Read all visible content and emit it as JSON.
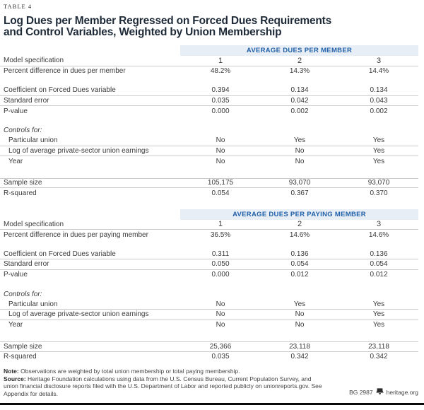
{
  "table_label": "TABLE 4",
  "title_lines": [
    "Log Dues per Member Regressed on Forced Dues Requirements",
    "and Control Variables, Weighted by Union Membership"
  ],
  "colors": {
    "band_background": "#e8eef5",
    "band_text_blue": "#2060a9",
    "row_divider": "#cbcbcb",
    "bottom_bar": "#0a0a0a"
  },
  "sections": [
    {
      "band": "AVERAGE DUES PER MEMBER",
      "rows": [
        {
          "label": "Model specification",
          "values": [
            "1",
            "2",
            "3"
          ],
          "spec": true,
          "line_below": true
        },
        {
          "label": "Percent difference in dues per member",
          "values": [
            "48.2%",
            "14.3%",
            "14.4%"
          ]
        },
        {
          "spacer": true
        },
        {
          "label": "Coefficient on Forced Dues variable",
          "values": [
            "0.394",
            "0.134",
            "0.134"
          ],
          "line_below": true
        },
        {
          "label": "Standard error",
          "values": [
            "0.035",
            "0.042",
            "0.043"
          ],
          "line_below": true
        },
        {
          "label": "P-value",
          "values": [
            "0.000",
            "0.002",
            "0.002"
          ]
        },
        {
          "spacer": true
        },
        {
          "label": "Controls for:",
          "values": [
            "",
            "",
            ""
          ],
          "italic": true
        },
        {
          "label": "Particular union",
          "values": [
            "No",
            "Yes",
            "Yes"
          ],
          "indent": true,
          "line_below": true
        },
        {
          "label": "Log of average private-sector union earnings",
          "values": [
            "No",
            "No",
            "Yes"
          ],
          "indent": true,
          "line_below": true
        },
        {
          "label": "Year",
          "values": [
            "No",
            "No",
            "Yes"
          ],
          "indent": true
        },
        {
          "spacer": true,
          "tall": true
        },
        {
          "label": "Sample size",
          "values": [
            "105,175",
            "93,070",
            "93,070"
          ],
          "line_above": true,
          "line_below": true
        },
        {
          "label": "R-squared",
          "values": [
            "0.054",
            "0.367",
            "0.370"
          ]
        }
      ]
    },
    {
      "band": "AVERAGE DUES PER PAYING MEMBER",
      "rows": [
        {
          "label": "Model specification",
          "values": [
            "1",
            "2",
            "3"
          ],
          "spec": true,
          "line_below": true
        },
        {
          "label": "Percent difference in dues per paying member",
          "values": [
            "36.5%",
            "14.6%",
            "14.6%"
          ]
        },
        {
          "spacer": true
        },
        {
          "label": "Coefficient on Forced Dues variable",
          "values": [
            "0.311",
            "0.136",
            "0.136"
          ],
          "line_below": true
        },
        {
          "label": "Standard error",
          "values": [
            "0.050",
            "0.054",
            "0.054"
          ],
          "line_below": true
        },
        {
          "label": "P-value",
          "values": [
            "0.000",
            "0.012",
            "0.012"
          ]
        },
        {
          "spacer": true
        },
        {
          "label": "Controls for:",
          "values": [
            "",
            "",
            ""
          ],
          "italic": true
        },
        {
          "label": "Particular union",
          "values": [
            "No",
            "Yes",
            "Yes"
          ],
          "indent": true,
          "line_below": true
        },
        {
          "label": "Log of average private-sector union earnings",
          "values": [
            "No",
            "No",
            "Yes"
          ],
          "indent": true,
          "line_below": true
        },
        {
          "label": "Year",
          "values": [
            "No",
            "No",
            "Yes"
          ],
          "indent": true
        },
        {
          "spacer": true,
          "tall": true
        },
        {
          "label": "Sample size",
          "values": [
            "25,366",
            "23,118",
            "23,118"
          ],
          "line_above": true,
          "line_below": true
        },
        {
          "label": "R-squared",
          "values": [
            "0.035",
            "0.342",
            "0.342"
          ]
        }
      ]
    }
  ],
  "notes": {
    "note_label": "Note:",
    "note_text": "Observations are weighted by total union membership or total paying membership.",
    "source_label": "Source:",
    "source_text": "Heritage Foundation calculations using data from the U.S. Census Bureau, Current Population Survey, and union financial disclosure reports filed with the U.S. Department of Labor and reported publicly on unionreports.gov. See Appendix for details."
  },
  "footer": {
    "doc_id": "BG 2987",
    "site": "heritage.org"
  }
}
